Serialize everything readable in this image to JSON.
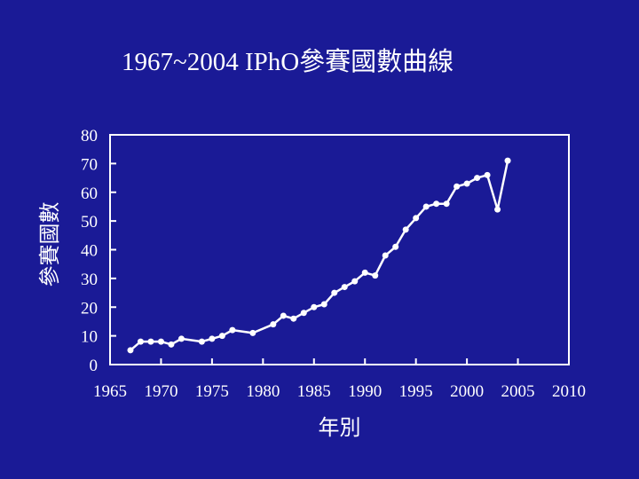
{
  "slide": {
    "title": "1967~2004 IPhO參賽國數曲線"
  },
  "chart_data": {
    "type": "line",
    "title": "1967~2004 IPhO參賽國數曲線",
    "xlabel": "年別",
    "ylabel": "參賽國數",
    "xlim": [
      1965,
      2010
    ],
    "ylim": [
      0,
      80
    ],
    "xticks": [
      1965,
      1970,
      1975,
      1980,
      1985,
      1990,
      1995,
      2000,
      2005,
      2010
    ],
    "yticks": [
      0,
      10,
      20,
      30,
      40,
      50,
      60,
      70,
      80
    ],
    "grid": false,
    "series": [
      {
        "x": [
          1967,
          1968,
          1969,
          1970,
          1971,
          1972,
          1974,
          1975,
          1976,
          1977,
          1979,
          1981,
          1982,
          1983,
          1984,
          1985,
          1986,
          1987,
          1988,
          1989,
          1990,
          1991,
          1992,
          1993,
          1994,
          1995,
          1996,
          1997,
          1998,
          1999,
          2000,
          2001,
          2002,
          2003,
          2004
        ],
        "y": [
          5,
          8,
          8,
          8,
          7,
          9,
          8,
          9,
          10,
          12,
          11,
          14,
          17,
          16,
          18,
          20,
          21,
          25,
          27,
          29,
          32,
          31,
          38,
          41,
          47,
          51,
          55,
          56,
          56,
          62,
          63,
          65,
          66,
          54,
          71
        ]
      }
    ],
    "colors": {
      "background": "#1a1a96",
      "line": "#ffffff",
      "axes": "#ffffff",
      "text": "#ffffff"
    }
  }
}
